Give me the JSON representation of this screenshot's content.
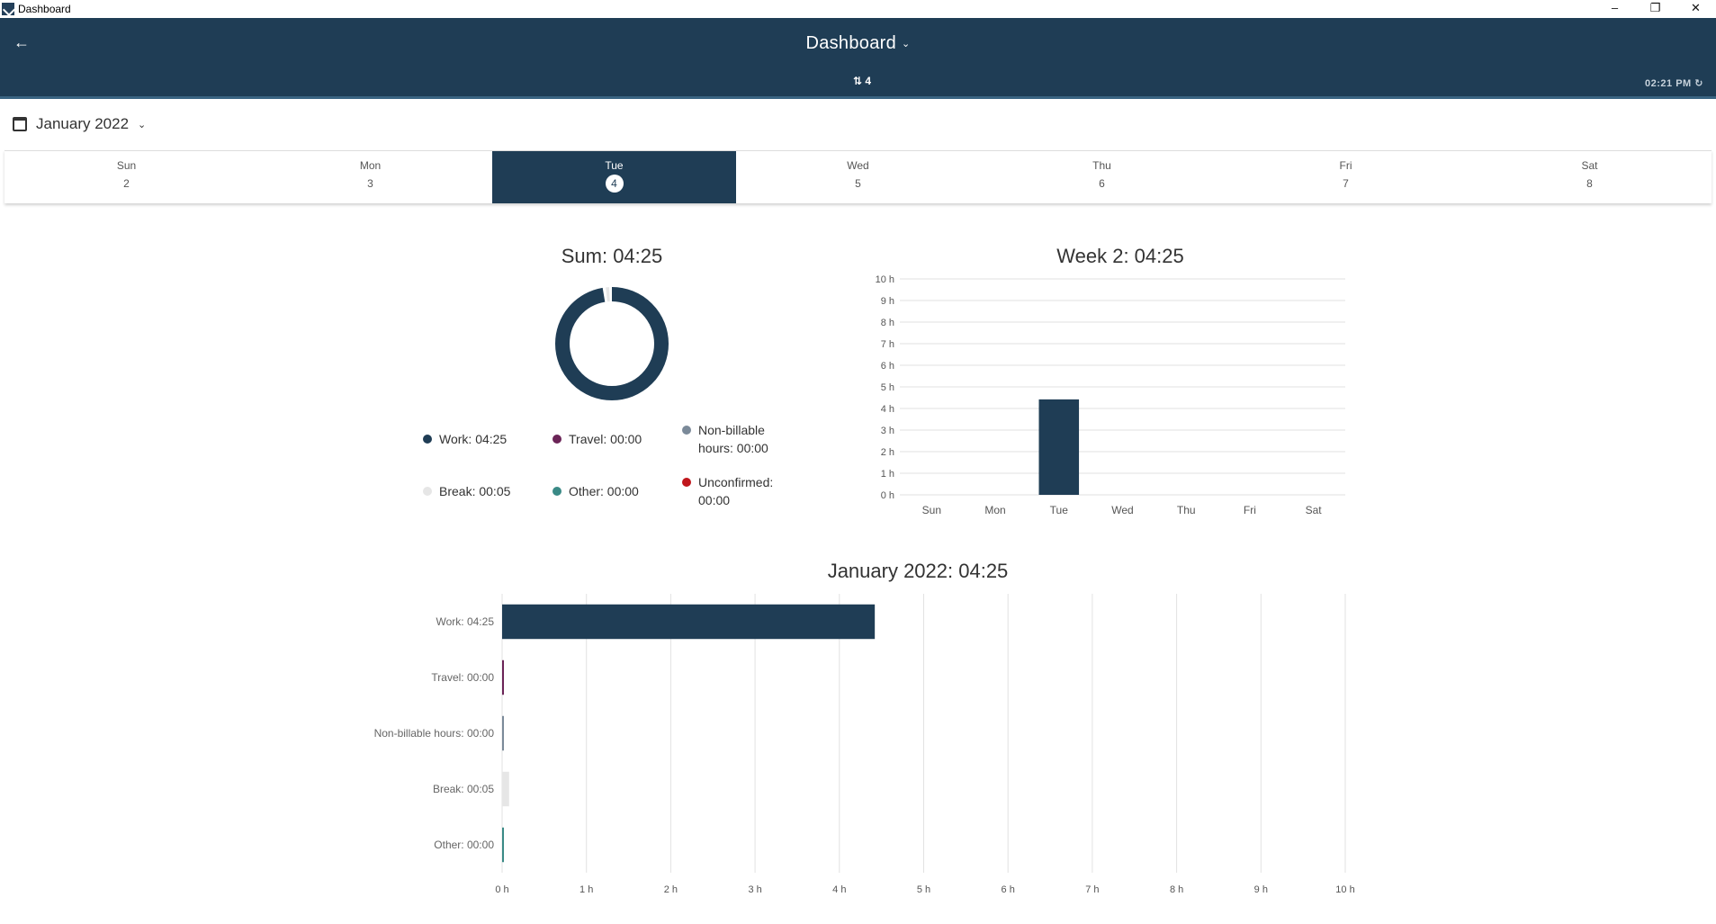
{
  "window": {
    "title": "Dashboard",
    "controls": [
      "–",
      "❐",
      "✕"
    ]
  },
  "header": {
    "title": "Dashboard",
    "sync_count": "4",
    "clock": "02:21 PM"
  },
  "month_picker": {
    "label": "January 2022"
  },
  "days": [
    {
      "name": "Sun",
      "num": "2"
    },
    {
      "name": "Mon",
      "num": "3"
    },
    {
      "name": "Tue",
      "num": "4",
      "active": true
    },
    {
      "name": "Wed",
      "num": "5"
    },
    {
      "name": "Thu",
      "num": "6"
    },
    {
      "name": "Fri",
      "num": "7"
    },
    {
      "name": "Sat",
      "num": "8"
    }
  ],
  "donut": {
    "title": "Sum: 04:25",
    "legend": [
      {
        "label": "Work: 04:25",
        "color": "#1f3d55"
      },
      {
        "label": "Travel: 00:00",
        "color": "#6b2457"
      },
      {
        "label": "Non-billable hours: 00:00",
        "color": "#7b8a99"
      },
      {
        "label": "Break: 00:05",
        "color": "#e6e6e6"
      },
      {
        "label": "Other: 00:00",
        "color": "#3a8a86"
      },
      {
        "label": "Unconfirmed: 00:00",
        "color": "#c0161c"
      }
    ]
  },
  "chart_data": [
    {
      "type": "pie",
      "title": "Sum: 04:25",
      "labels": [
        "Work",
        "Travel",
        "Non-billable hours",
        "Break",
        "Other",
        "Unconfirmed"
      ],
      "values": [
        265,
        0,
        0,
        5,
        0,
        0
      ],
      "colors": [
        "#1f3d55",
        "#6b2457",
        "#7b8a99",
        "#e6e6e6",
        "#3a8a86",
        "#c0161c"
      ]
    },
    {
      "type": "bar",
      "title": "Week 2: 04:25",
      "categories": [
        "Sun",
        "Mon",
        "Tue",
        "Wed",
        "Thu",
        "Fri",
        "Sat"
      ],
      "values": [
        0,
        0,
        4.42,
        0,
        0,
        0,
        0
      ],
      "ylim": [
        0,
        10
      ],
      "yticks": [
        "0 h",
        "1 h",
        "2 h",
        "3 h",
        "4 h",
        "5 h",
        "6 h",
        "7 h",
        "8 h",
        "9 h",
        "10 h"
      ],
      "color": "#1f3d55",
      "grid": true
    },
    {
      "type": "bar",
      "orientation": "horizontal",
      "title": "January 2022: 04:25",
      "categories": [
        "Work: 04:25",
        "Travel: 00:00",
        "Non-billable hours: 00:00",
        "Break: 00:05",
        "Other: 00:00"
      ],
      "values": [
        4.42,
        0.02,
        0.02,
        0.083,
        0.02
      ],
      "colors": [
        "#1f3d55",
        "#6b2457",
        "#7b8a99",
        "#e6e6e6",
        "#3a8a86"
      ],
      "xlim": [
        0,
        10
      ],
      "xticks": [
        "0 h",
        "1 h",
        "2 h",
        "3 h",
        "4 h",
        "5 h",
        "6 h",
        "7 h",
        "8 h",
        "9 h",
        "10 h"
      ],
      "grid": true
    }
  ]
}
